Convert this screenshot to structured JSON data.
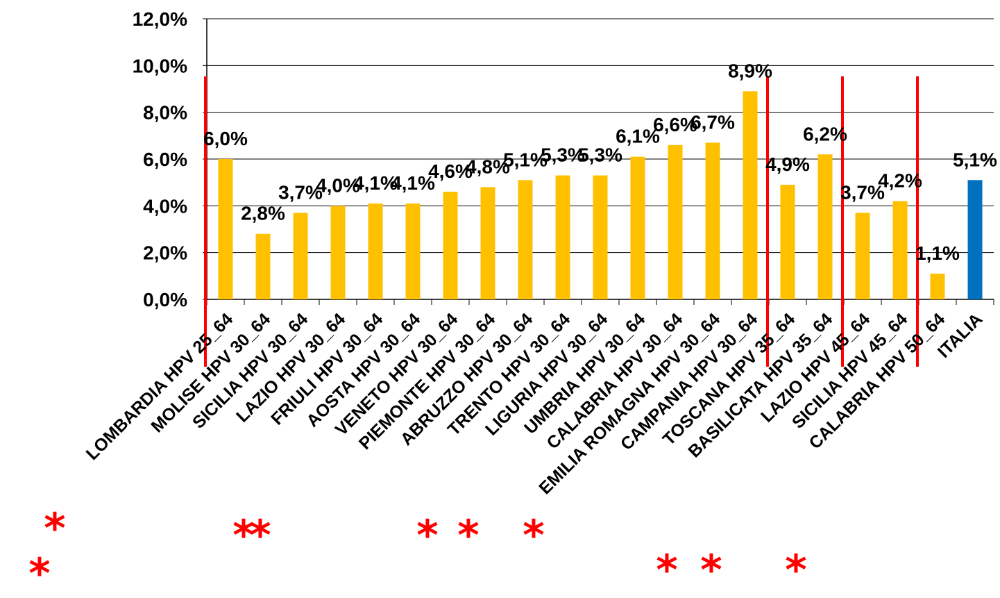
{
  "chart_data": {
    "type": "bar",
    "title": "",
    "xlabel": "",
    "ylabel": "",
    "ylim": [
      0,
      0.12
    ],
    "y_ticks": [
      "0,0%",
      "2,0%",
      "4,0%",
      "6,0%",
      "8,0%",
      "10,0%",
      "12,0%"
    ],
    "y_tick_values": [
      0,
      0.02,
      0.04,
      0.06,
      0.08,
      0.1,
      0.12
    ],
    "grid": true,
    "categories": [
      "LOMBARDIA HPV 25_64",
      "MOLISE HPV 30_64",
      "SICILIA HPV 30_64",
      "LAZIO HPV 30_64",
      "FRIULI HPV 30_64",
      "AOSTA HPV 30_64",
      "VENETO HPV 30_64",
      "PIEMONTE HPV 30_64",
      "ABRUZZO HPV 30_64",
      "TRENTO HPV 30_64",
      "LIGURIA HPV 30_64",
      "UMBRIA HPV 30_64",
      "CALABRIA HPV 30_64",
      "EMILIA ROMAGNA HPV 30_64",
      "CAMPANIA HPV 30_64",
      "TOSCANA HPV 35_64",
      "BASILICATA HPV 35_64",
      "LAZIO HPV 45_64",
      "SICILIA HPV 45_64",
      "CALABRIA HPV 50_64",
      "ITALIA"
    ],
    "values": [
      0.06,
      0.028,
      0.037,
      0.04,
      0.041,
      0.041,
      0.046,
      0.048,
      0.051,
      0.053,
      0.053,
      0.061,
      0.066,
      0.067,
      0.089,
      0.049,
      0.062,
      0.037,
      0.042,
      0.011,
      0.051
    ],
    "data_labels": [
      "6,0%",
      "2,8%",
      "3,7%",
      "4,0%",
      "4,1%",
      "4,1%",
      "4,6%",
      "4,8%",
      "5,1%",
      "5,3%",
      "5,3%",
      "6,1%",
      "6,6%",
      "6,7%",
      "8,9%",
      "4,9%",
      "6,2%",
      "3,7%",
      "4,2%",
      "1,1%",
      "5,1%"
    ],
    "bar_colors": [
      "#ffc000",
      "#ffc000",
      "#ffc000",
      "#ffc000",
      "#ffc000",
      "#ffc000",
      "#ffc000",
      "#ffc000",
      "#ffc000",
      "#ffc000",
      "#ffc000",
      "#ffc000",
      "#ffc000",
      "#ffc000",
      "#ffc000",
      "#ffc000",
      "#ffc000",
      "#ffc000",
      "#ffc000",
      "#ffc000",
      "#0070c0"
    ],
    "group_separators_after_index": [
      0,
      14,
      16,
      18
    ],
    "separator_color": "#ff0000",
    "starred_indices": [
      0,
      1,
      4,
      5,
      9,
      10,
      11,
      14,
      15,
      18
    ],
    "star_symbol": "*",
    "star_color": "#ff0000"
  }
}
